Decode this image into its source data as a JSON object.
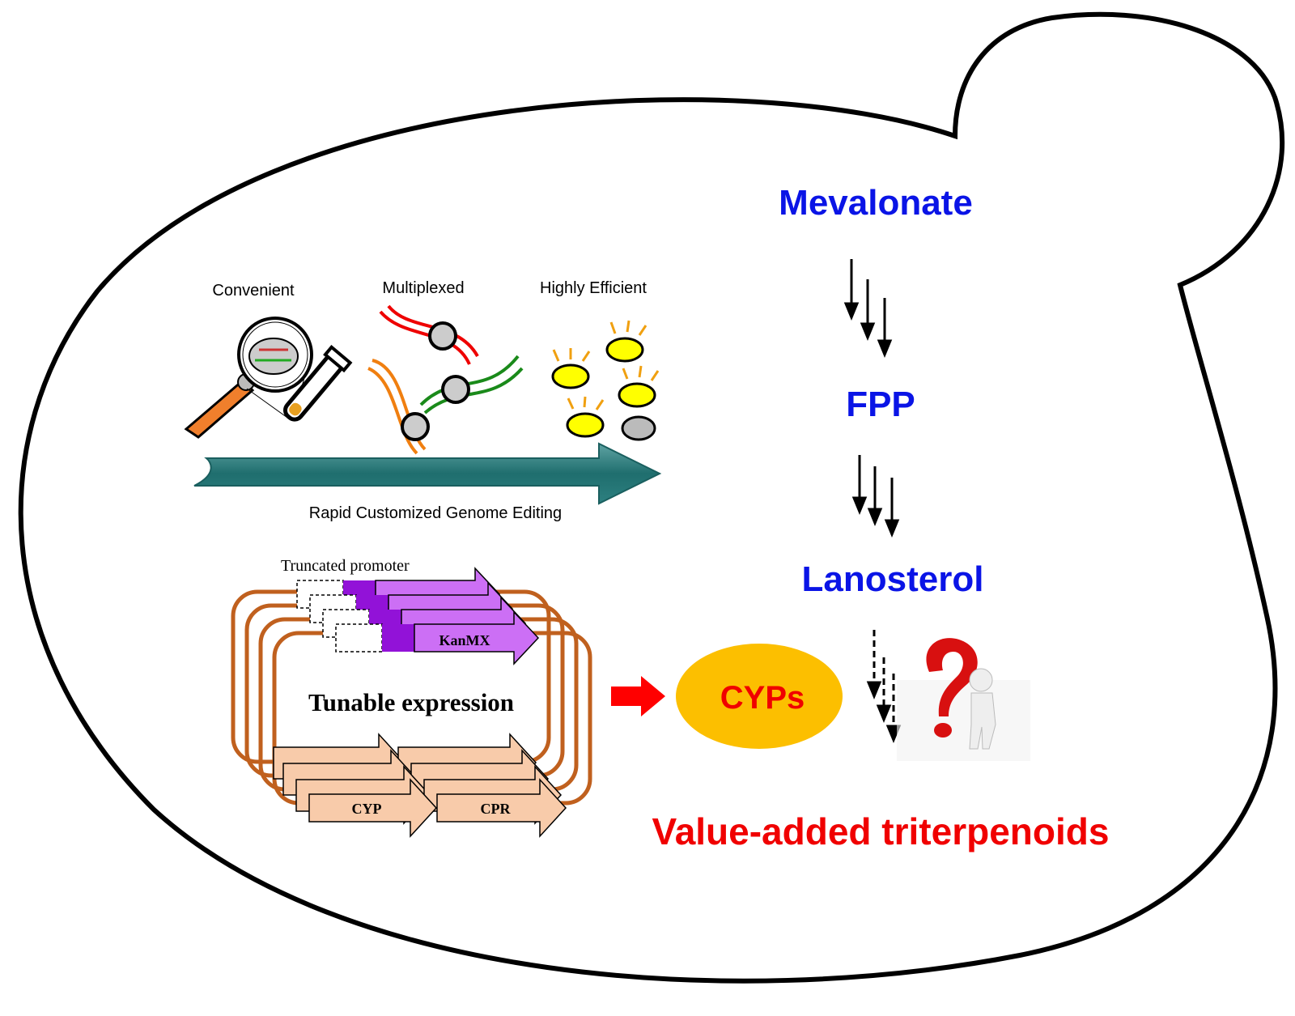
{
  "colors": {
    "pathway_text": "#0a14e6",
    "highlight_text": "#f00000",
    "cyps_ellipse": "#fcbf00",
    "outline": "#000000",
    "plasmid": "#c0601e",
    "kanmx_light": "#cc6ff5",
    "kanmx_dark": "#9212d8",
    "gene_fill": "#f8cbaa",
    "editing_arrow": "#1f6e6e"
  },
  "editing": {
    "features": [
      "Convenient",
      "Multiplexed",
      "Highly Efficient"
    ],
    "caption": "Rapid Customized Genome Editing"
  },
  "construct": {
    "promoter_label": "Truncated promoter",
    "marker_label": "KanMX",
    "title": "Tunable expression",
    "gene1": "CYP",
    "gene2": "CPR"
  },
  "pathway": {
    "step1": "Mevalonate",
    "step2": "FPP",
    "step3": "Lanosterol",
    "enzyme": "CYPs",
    "product": "Value-added triterpenoids"
  },
  "icons": [
    "yeast-cell-outline",
    "magnifier-icon",
    "test-tube-icon",
    "cas9-dna-icon",
    "yeast-cells-icon",
    "progress-arrow-icon",
    "red-arrow-icon",
    "question-person-icon"
  ]
}
